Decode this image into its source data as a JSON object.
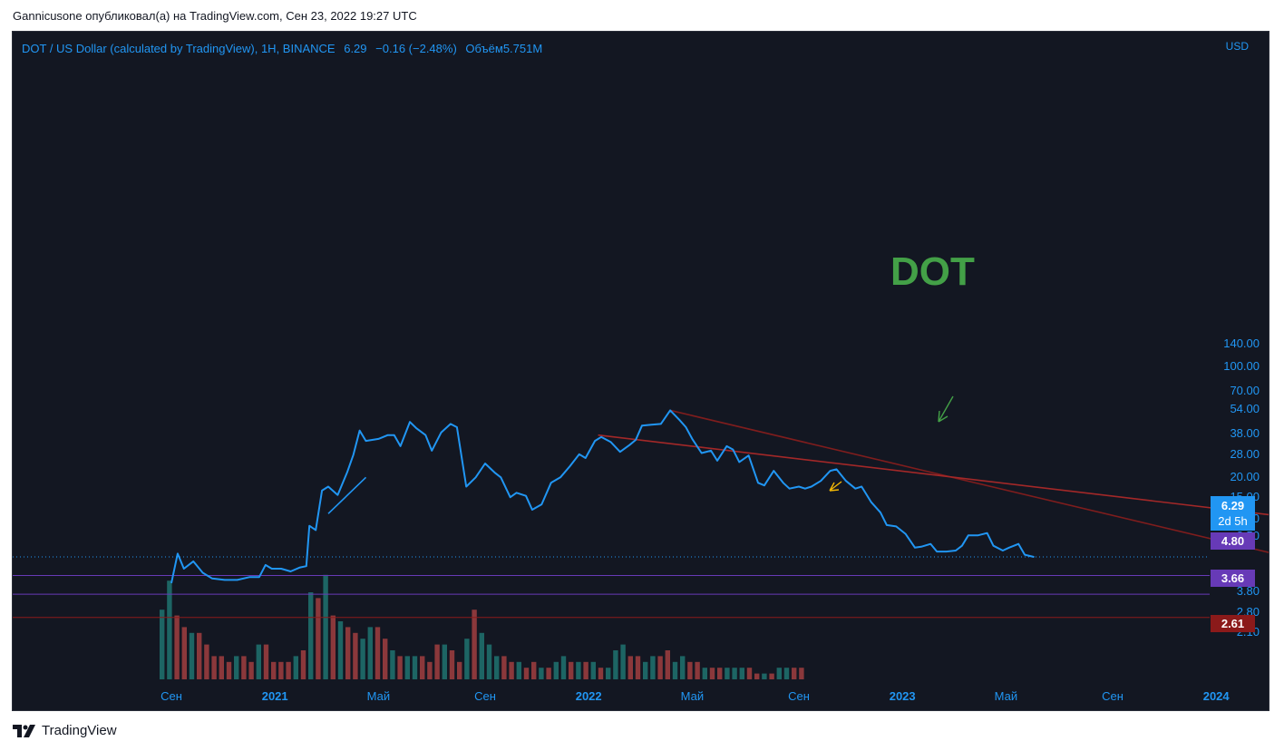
{
  "header": {
    "caption": "Gannicusone опубликовал(а) на TradingView.com, Сен 23, 2022 19:27 UTC"
  },
  "footer": {
    "brand": "TradingView"
  },
  "symbol_bar": {
    "title": "DOT / US Dollar (calculated by TradingView), 1H, BINANCE",
    "price": "6.29",
    "change": "−0.16 (−2.48%)",
    "volume": "Объём5.751M"
  },
  "annotation": {
    "text": "DOT",
    "color": "#43a047"
  },
  "price_badge": {
    "price": "6.29",
    "countdown": "2d 5h",
    "color": "#2196f3"
  },
  "levels": [
    {
      "label": "4.80",
      "value": 4.8,
      "color": "#673ab7"
    },
    {
      "label": "3.66",
      "value": 3.66,
      "color": "#673ab7"
    },
    {
      "label": "2.61",
      "value": 2.61,
      "color": "#8b1a1a"
    }
  ],
  "chart_data": {
    "type": "line",
    "currency": "USD",
    "scale": "log",
    "y_ticks": [
      "140.00",
      "100.00",
      "70.00",
      "54.00",
      "38.00",
      "28.00",
      "20.00",
      "15.00",
      "11.00",
      "8.50",
      "3.80",
      "2.80",
      "2.10"
    ],
    "x_ticks": [
      {
        "label": "Сен",
        "year": false
      },
      {
        "label": "2021",
        "year": true
      },
      {
        "label": "Май",
        "year": false
      },
      {
        "label": "Сен",
        "year": false
      },
      {
        "label": "2022",
        "year": true
      },
      {
        "label": "Май",
        "year": false
      },
      {
        "label": "Сен",
        "year": false
      },
      {
        "label": "2023",
        "year": true
      },
      {
        "label": "Май",
        "year": false
      },
      {
        "label": "Сен",
        "year": false
      },
      {
        "label": "2024",
        "year": true
      }
    ],
    "series": [
      {
        "values": [
          [
            2020.67,
            4.3
          ],
          [
            2020.69,
            6.6
          ],
          [
            2020.71,
            5.3
          ],
          [
            2020.74,
            5.9
          ],
          [
            2020.77,
            5.0
          ],
          [
            2020.8,
            4.6
          ],
          [
            2020.84,
            4.5
          ],
          [
            2020.88,
            4.5
          ],
          [
            2020.92,
            4.7
          ],
          [
            2020.95,
            4.7
          ],
          [
            2020.97,
            5.6
          ],
          [
            2020.99,
            5.3
          ],
          [
            2021.02,
            5.3
          ],
          [
            2021.05,
            5.1
          ],
          [
            2021.08,
            5.4
          ],
          [
            2021.1,
            5.5
          ],
          [
            2021.11,
            9.9
          ],
          [
            2021.13,
            9.3
          ],
          [
            2021.15,
            16.5
          ],
          [
            2021.17,
            17.5
          ],
          [
            2021.2,
            15.5
          ],
          [
            2021.23,
            21.5
          ],
          [
            2021.25,
            27.8
          ],
          [
            2021.27,
            39.5
          ],
          [
            2021.29,
            34.0
          ],
          [
            2021.33,
            35.0
          ],
          [
            2021.36,
            37.0
          ],
          [
            2021.38,
            37.0
          ],
          [
            2021.4,
            31.5
          ],
          [
            2021.43,
            44.8
          ],
          [
            2021.45,
            41.0
          ],
          [
            2021.48,
            37.0
          ],
          [
            2021.5,
            29.5
          ],
          [
            2021.53,
            38.5
          ],
          [
            2021.56,
            43.5
          ],
          [
            2021.58,
            41.5
          ],
          [
            2021.61,
            17.5
          ],
          [
            2021.64,
            20.0
          ],
          [
            2021.67,
            24.5
          ],
          [
            2021.7,
            21.5
          ],
          [
            2021.72,
            20.0
          ],
          [
            2021.75,
            15.0
          ],
          [
            2021.77,
            16.0
          ],
          [
            2021.8,
            15.3
          ],
          [
            2021.82,
            12.5
          ],
          [
            2021.85,
            13.5
          ],
          [
            2021.88,
            18.5
          ],
          [
            2021.91,
            20.0
          ],
          [
            2021.94,
            23.5
          ],
          [
            2021.97,
            28.0
          ],
          [
            2021.99,
            26.5
          ],
          [
            2022.02,
            34.0
          ],
          [
            2022.04,
            36.0
          ],
          [
            2022.07,
            33.5
          ],
          [
            2022.1,
            29.0
          ],
          [
            2022.13,
            32.0
          ],
          [
            2022.15,
            34.5
          ],
          [
            2022.17,
            42.5
          ],
          [
            2022.2,
            43.0
          ],
          [
            2022.23,
            43.5
          ],
          [
            2022.26,
            53.0
          ],
          [
            2022.29,
            46.0
          ],
          [
            2022.31,
            41.5
          ],
          [
            2022.33,
            35.0
          ],
          [
            2022.36,
            28.5
          ],
          [
            2022.39,
            29.5
          ],
          [
            2022.41,
            25.5
          ],
          [
            2022.44,
            31.5
          ],
          [
            2022.46,
            30.0
          ],
          [
            2022.48,
            25.0
          ],
          [
            2022.51,
            27.5
          ],
          [
            2022.54,
            18.5
          ],
          [
            2022.56,
            17.8
          ],
          [
            2022.59,
            22.0
          ],
          [
            2022.62,
            18.5
          ],
          [
            2022.64,
            17.0
          ],
          [
            2022.67,
            17.5
          ],
          [
            2022.69,
            17.0
          ],
          [
            2022.71,
            17.5
          ],
          [
            2022.74,
            19.0
          ],
          [
            2022.77,
            22.0
          ],
          [
            2022.79,
            22.5
          ],
          [
            2022.82,
            19.0
          ],
          [
            2022.85,
            17.0
          ],
          [
            2022.87,
            17.5
          ],
          [
            2022.9,
            14.0
          ],
          [
            2022.93,
            12.0
          ],
          [
            2022.95,
            10.0
          ],
          [
            2022.98,
            9.8
          ],
          [
            2023.01,
            8.8
          ],
          [
            2023.04,
            7.2
          ],
          [
            2023.06,
            7.3
          ],
          [
            2023.09,
            7.6
          ],
          [
            2023.11,
            6.8
          ],
          [
            2023.14,
            6.8
          ],
          [
            2023.17,
            6.9
          ],
          [
            2023.19,
            7.4
          ],
          [
            2023.21,
            8.6
          ],
          [
            2023.24,
            8.6
          ],
          [
            2023.27,
            8.9
          ],
          [
            2023.29,
            7.4
          ],
          [
            2023.32,
            6.9
          ],
          [
            2023.34,
            7.2
          ],
          [
            2023.37,
            7.6
          ],
          [
            2023.39,
            6.5
          ],
          [
            2023.42,
            6.29
          ]
        ]
      }
    ],
    "trendlines": [
      {
        "from": [
          2022.26,
          53.0
        ],
        "to": [
          2025.04,
          2.61
        ],
        "color": "#7f1d1d"
      },
      {
        "from": [
          2022.03,
          37.0
        ],
        "to": [
          2025.39,
          6.0
        ],
        "color": "#a32828"
      },
      {
        "from": [
          2021.17,
          11.8
        ],
        "to": [
          2021.29,
          20.0
        ],
        "color": "#2196f3"
      }
    ],
    "volume": [
      {
        "v": 12,
        "up": true
      },
      {
        "v": 17,
        "up": true
      },
      {
        "v": 11,
        "up": false
      },
      {
        "v": 9,
        "up": false
      },
      {
        "v": 8,
        "up": true
      },
      {
        "v": 8,
        "up": false
      },
      {
        "v": 6,
        "up": false
      },
      {
        "v": 4,
        "up": false
      },
      {
        "v": 4,
        "up": false
      },
      {
        "v": 3,
        "up": false
      },
      {
        "v": 4,
        "up": true
      },
      {
        "v": 4,
        "up": false
      },
      {
        "v": 3,
        "up": false
      },
      {
        "v": 6,
        "up": true
      },
      {
        "v": 6,
        "up": false
      },
      {
        "v": 3,
        "up": false
      },
      {
        "v": 3,
        "up": false
      },
      {
        "v": 3,
        "up": false
      },
      {
        "v": 4,
        "up": true
      },
      {
        "v": 5,
        "up": false
      },
      {
        "v": 15,
        "up": true
      },
      {
        "v": 14,
        "up": false
      },
      {
        "v": 18,
        "up": true
      },
      {
        "v": 11,
        "up": false
      },
      {
        "v": 10,
        "up": true
      },
      {
        "v": 9,
        "up": false
      },
      {
        "v": 8,
        "up": false
      },
      {
        "v": 7,
        "up": true
      },
      {
        "v": 9,
        "up": true
      },
      {
        "v": 9,
        "up": false
      },
      {
        "v": 7,
        "up": false
      },
      {
        "v": 5,
        "up": true
      },
      {
        "v": 4,
        "up": false
      },
      {
        "v": 4,
        "up": true
      },
      {
        "v": 4,
        "up": true
      },
      {
        "v": 4,
        "up": false
      },
      {
        "v": 3,
        "up": false
      },
      {
        "v": 6,
        "up": false
      },
      {
        "v": 6,
        "up": true
      },
      {
        "v": 5,
        "up": false
      },
      {
        "v": 3,
        "up": false
      },
      {
        "v": 7,
        "up": true
      },
      {
        "v": 12,
        "up": false
      },
      {
        "v": 8,
        "up": true
      },
      {
        "v": 6,
        "up": true
      },
      {
        "v": 4,
        "up": true
      },
      {
        "v": 4,
        "up": false
      },
      {
        "v": 3,
        "up": false
      },
      {
        "v": 3,
        "up": true
      },
      {
        "v": 2,
        "up": false
      },
      {
        "v": 3,
        "up": false
      },
      {
        "v": 2,
        "up": true
      },
      {
        "v": 2,
        "up": false
      },
      {
        "v": 3,
        "up": true
      },
      {
        "v": 4,
        "up": true
      },
      {
        "v": 3,
        "up": false
      },
      {
        "v": 3,
        "up": true
      },
      {
        "v": 3,
        "up": false
      },
      {
        "v": 3,
        "up": true
      },
      {
        "v": 2,
        "up": false
      },
      {
        "v": 2,
        "up": true
      },
      {
        "v": 5,
        "up": true
      },
      {
        "v": 6,
        "up": true
      },
      {
        "v": 4,
        "up": false
      },
      {
        "v": 4,
        "up": false
      },
      {
        "v": 3,
        "up": true
      },
      {
        "v": 4,
        "up": true
      },
      {
        "v": 4,
        "up": false
      },
      {
        "v": 5,
        "up": false
      },
      {
        "v": 3,
        "up": true
      },
      {
        "v": 4,
        "up": true
      },
      {
        "v": 3,
        "up": false
      },
      {
        "v": 3,
        "up": false
      },
      {
        "v": 2,
        "up": true
      },
      {
        "v": 2,
        "up": false
      },
      {
        "v": 2,
        "up": false
      },
      {
        "v": 2,
        "up": true
      },
      {
        "v": 2,
        "up": true
      },
      {
        "v": 2,
        "up": true
      },
      {
        "v": 2,
        "up": false
      },
      {
        "v": 1,
        "up": false
      },
      {
        "v": 1,
        "up": true
      },
      {
        "v": 1,
        "up": false
      },
      {
        "v": 2,
        "up": true
      },
      {
        "v": 2,
        "up": true
      },
      {
        "v": 2,
        "up": false
      },
      {
        "v": 2,
        "up": false
      }
    ]
  }
}
